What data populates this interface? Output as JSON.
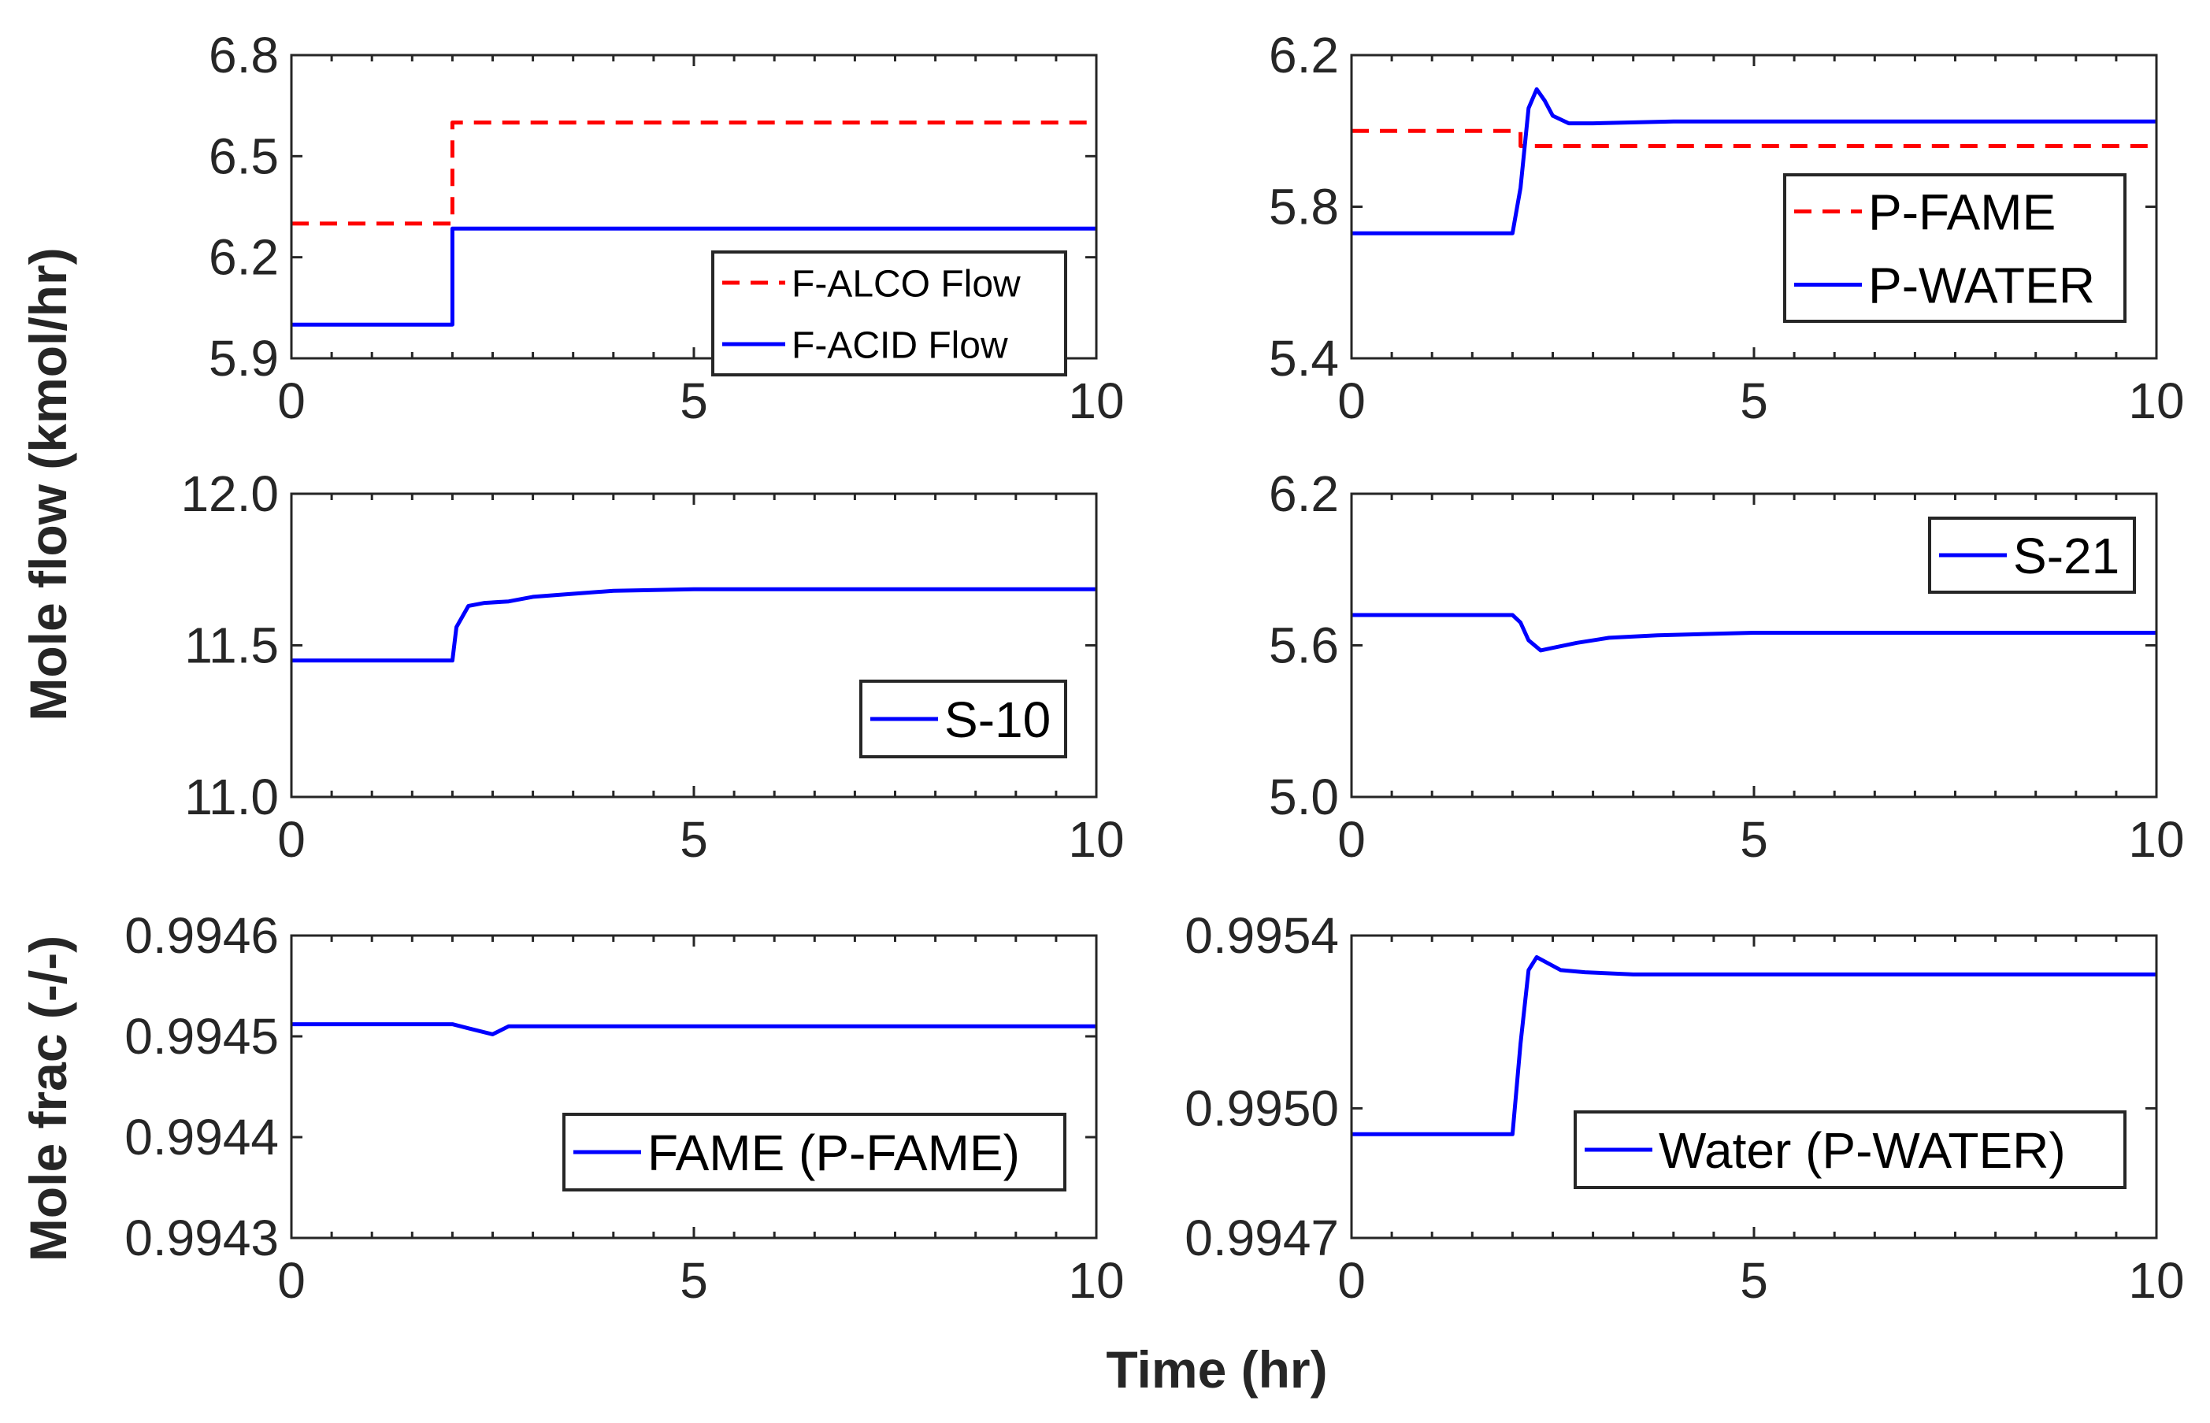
{
  "figure": {
    "ylabel_flow": "Mole flow (kmol/hr)",
    "ylabel_frac": "Mole frac (-/-)",
    "xlabel": "Time (hr)"
  },
  "colors": {
    "red": "#ff0000",
    "blue": "#0000ff",
    "axes": "#262626"
  },
  "chart_data": [
    {
      "type": "line",
      "panel": "top-left",
      "xlim": [
        0,
        10
      ],
      "ylim": [
        5.9,
        6.8
      ],
      "xticks": [
        0,
        5,
        10
      ],
      "yticks": [
        5.9,
        6.2,
        6.5,
        6.8
      ],
      "xtick_labels": [
        "0",
        "5",
        "10"
      ],
      "ytick_labels": [
        "5.9",
        "6.2",
        "6.5",
        "6.8"
      ],
      "legend_position": "bottom-right",
      "series": [
        {
          "name": "F-ALCO Flow",
          "style": "dashed",
          "color": "#ff0000",
          "x": [
            0,
            2,
            2,
            10
          ],
          "y": [
            6.3,
            6.3,
            6.6,
            6.6
          ]
        },
        {
          "name": "F-ACID Flow",
          "style": "solid",
          "color": "#0000ff",
          "x": [
            0,
            2,
            2,
            10
          ],
          "y": [
            6.0,
            6.0,
            6.285,
            6.285
          ]
        }
      ]
    },
    {
      "type": "line",
      "panel": "top-right",
      "xlim": [
        0,
        10
      ],
      "ylim": [
        5.4,
        6.2
      ],
      "xticks": [
        0,
        5,
        10
      ],
      "yticks": [
        5.4,
        5.8,
        6.2
      ],
      "xtick_labels": [
        "0",
        "5",
        "10"
      ],
      "ytick_labels": [
        "5.4",
        "5.8",
        "6.2"
      ],
      "legend_position": "bottom-right",
      "series": [
        {
          "name": "P-FAME",
          "style": "dashed",
          "color": "#ff0000",
          "x": [
            0,
            2.1,
            2.1,
            10
          ],
          "y": [
            6.0,
            6.0,
            5.96,
            5.96
          ]
        },
        {
          "name": "P-WATER",
          "style": "solid",
          "color": "#0000ff",
          "x": [
            0,
            2.0,
            2.1,
            2.2,
            2.3,
            2.4,
            2.5,
            2.7,
            3.0,
            4.0,
            10
          ],
          "y": [
            5.73,
            5.73,
            5.85,
            6.06,
            6.11,
            6.08,
            6.04,
            6.02,
            6.02,
            6.025,
            6.025
          ]
        }
      ]
    },
    {
      "type": "line",
      "panel": "middle-left",
      "xlim": [
        0,
        10
      ],
      "ylim": [
        11.0,
        12.0
      ],
      "xticks": [
        0,
        5,
        10
      ],
      "yticks": [
        11.0,
        11.5,
        12.0
      ],
      "xtick_labels": [
        "0",
        "5",
        "10"
      ],
      "ytick_labels": [
        "11.0",
        "11.5",
        "12.0"
      ],
      "legend_position": "bottom-right",
      "series": [
        {
          "name": "S-10",
          "style": "solid",
          "color": "#0000ff",
          "x": [
            0,
            2.0,
            2.05,
            2.2,
            2.4,
            2.7,
            3.0,
            3.5,
            4.0,
            5.0,
            10
          ],
          "y": [
            11.45,
            11.45,
            11.56,
            11.63,
            11.64,
            11.645,
            11.66,
            11.67,
            11.68,
            11.685,
            11.685
          ]
        }
      ]
    },
    {
      "type": "line",
      "panel": "middle-right",
      "xlim": [
        0,
        10
      ],
      "ylim": [
        5.0,
        6.2
      ],
      "xticks": [
        0,
        5,
        10
      ],
      "yticks": [
        5.0,
        5.6,
        6.2
      ],
      "xtick_labels": [
        "0",
        "5",
        "10"
      ],
      "ytick_labels": [
        "5.0",
        "5.6",
        "6.2"
      ],
      "legend_position": "top-right",
      "series": [
        {
          "name": "S-21",
          "style": "solid",
          "color": "#0000ff",
          "x": [
            0,
            2.0,
            2.1,
            2.2,
            2.35,
            2.5,
            2.8,
            3.2,
            3.8,
            5.0,
            10
          ],
          "y": [
            5.72,
            5.72,
            5.69,
            5.62,
            5.58,
            5.59,
            5.61,
            5.63,
            5.64,
            5.65,
            5.65
          ]
        }
      ]
    },
    {
      "type": "line",
      "panel": "bottom-left",
      "xlim": [
        0,
        10
      ],
      "ylim": [
        0.9943,
        0.9946
      ],
      "xticks": [
        0,
        5,
        10
      ],
      "yticks": [
        0.9943,
        0.9944,
        0.9945,
        0.9946
      ],
      "xtick_labels": [
        "0",
        "5",
        "10"
      ],
      "ytick_labels": [
        "0.9943",
        "0.9944",
        "0.9945",
        "0.9946"
      ],
      "legend_position": "bottom-right",
      "series": [
        {
          "name": "FAME (P-FAME)",
          "style": "solid",
          "color": "#0000ff",
          "x": [
            0,
            2.0,
            2.2,
            2.5,
            2.7,
            3.0,
            10
          ],
          "y": [
            0.994512,
            0.994512,
            0.994508,
            0.994502,
            0.99451,
            0.99451,
            0.99451
          ]
        }
      ]
    },
    {
      "type": "line",
      "panel": "bottom-right",
      "xlim": [
        0,
        10
      ],
      "ylim": [
        0.9947,
        0.9954
      ],
      "xticks": [
        0,
        5,
        10
      ],
      "yticks": [
        0.9947,
        0.995,
        0.9954
      ],
      "xtick_labels": [
        "0",
        "5",
        "10"
      ],
      "ytick_labels": [
        "0.9947",
        "0.9950",
        "0.9954"
      ],
      "legend_position": "bottom-right",
      "series": [
        {
          "name": "Water (P-WATER)",
          "style": "solid",
          "color": "#0000ff",
          "x": [
            0,
            2.0,
            2.1,
            2.2,
            2.3,
            2.4,
            2.6,
            2.9,
            3.5,
            10
          ],
          "y": [
            0.99494,
            0.99494,
            0.99515,
            0.99532,
            0.99535,
            0.99534,
            0.99532,
            0.995315,
            0.99531,
            0.99531
          ]
        }
      ]
    }
  ]
}
